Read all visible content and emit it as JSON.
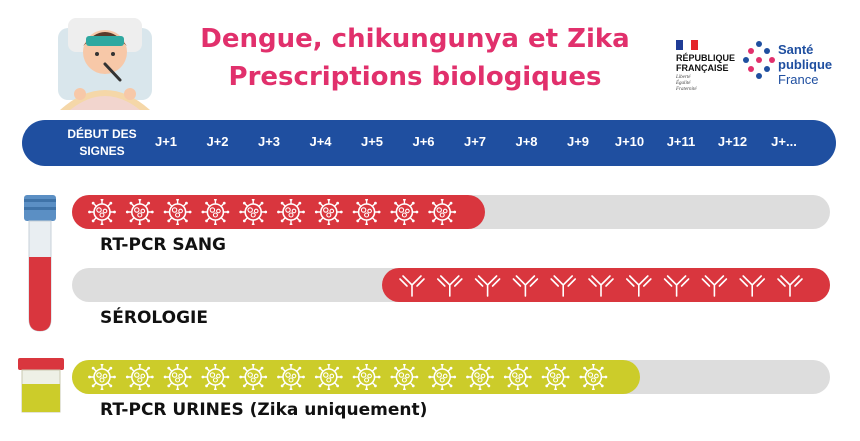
{
  "title": {
    "line1": "Dengue, chikungunya et Zika",
    "line2": "Prescriptions biologiques"
  },
  "logos": {
    "republique": {
      "line1": "RÉPUBLIQUE",
      "line2": "FRANÇAISE",
      "motto": [
        "Liberté",
        "Égalité",
        "Fraternité"
      ]
    },
    "sante_publique": {
      "line1": "Santé",
      "line2": "publique",
      "line3": "France"
    }
  },
  "timeline": {
    "start_label_line1": "DÉBUT DES",
    "start_label_line2": "SIGNES",
    "days": [
      "J+1",
      "J+2",
      "J+3",
      "J+4",
      "J+5",
      "J+6",
      "J+7",
      "J+8",
      "J+9",
      "J+10",
      "J+11",
      "J+12",
      "J+..."
    ]
  },
  "rows": [
    {
      "label": "RT-PCR SANG",
      "from_day": 0,
      "to_day": 7,
      "color": "#d9363e",
      "icon": "virus-icon"
    },
    {
      "label": "SÉROLOGIE",
      "from_day": 5,
      "to_day": 13,
      "color": "#d9363e",
      "icon": "antibody-icon"
    },
    {
      "label": "RT-PCR URINES (Zika uniquement)",
      "from_day": 0,
      "to_day": 10,
      "color": "#cccc2a",
      "icon": "virus-icon"
    }
  ],
  "colors": {
    "title": "#e1306c",
    "timeline_bg": "#1f4fa0",
    "track": "#dddddd",
    "red": "#d9363e",
    "yellow": "#cccc2a"
  }
}
